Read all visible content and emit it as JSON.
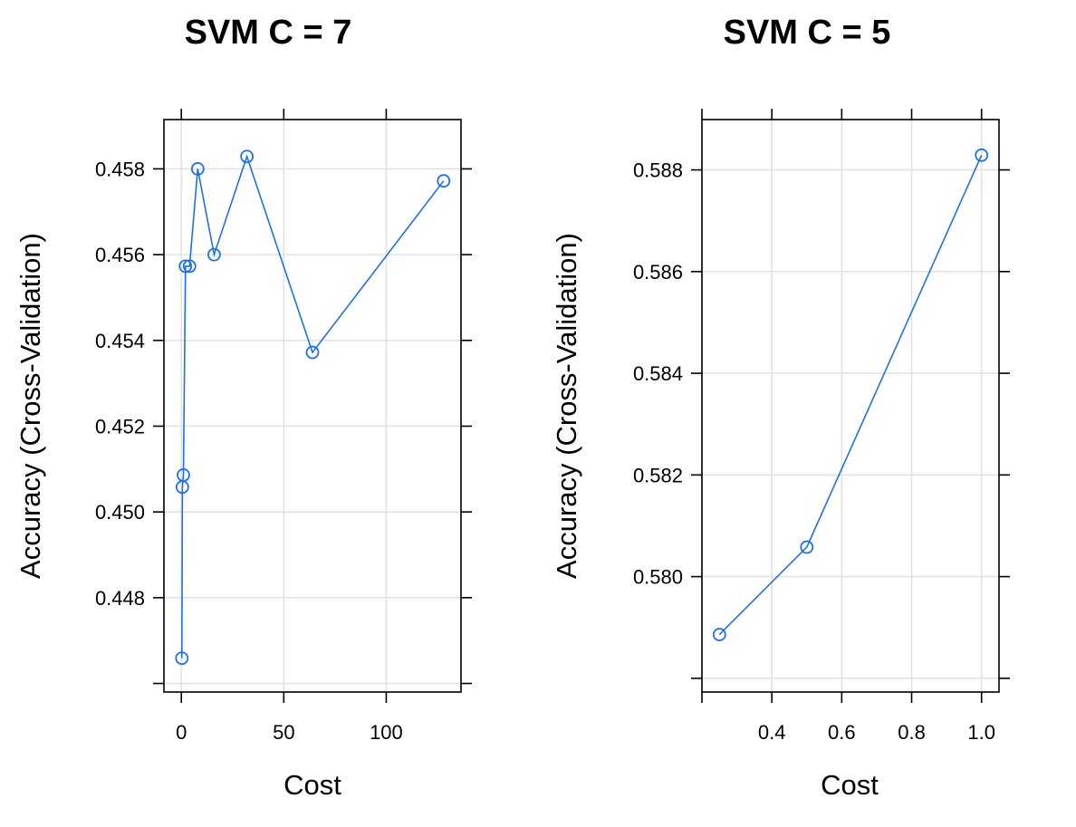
{
  "series_color": "#1F6FEB",
  "chart_data": [
    {
      "type": "line",
      "title": "SVM C = 7",
      "xlabel": "Cost",
      "ylabel": "Accuracy (Cross-Validation)",
      "grid": true,
      "x": [
        0.25,
        0.5,
        1,
        2,
        4,
        8,
        16,
        32,
        64,
        128
      ],
      "values": [
        0.44659,
        0.45058,
        0.45086,
        0.45573,
        0.45573,
        0.458,
        0.456,
        0.45829,
        0.45372,
        0.45772
      ],
      "xlim": [
        -8.5,
        136.5
      ],
      "ylim": [
        0.4458,
        0.45915
      ],
      "xticks": [
        0,
        50,
        100
      ],
      "xtick_labels": [
        "0",
        "50",
        "100"
      ],
      "yticks": [
        0.446,
        0.448,
        0.45,
        0.452,
        0.454,
        0.456,
        0.458
      ],
      "ytick_labels": [
        "",
        "0.448",
        "0.450",
        "0.452",
        "0.454",
        "0.456",
        "0.458"
      ]
    },
    {
      "type": "line",
      "title": "SVM C = 5",
      "xlabel": "Cost",
      "ylabel": "Accuracy (Cross-Validation)",
      "grid": true,
      "x": [
        0.25,
        0.5,
        1.0
      ],
      "values": [
        0.57886,
        0.58058,
        0.58829
      ],
      "xlim": [
        0.2,
        1.05
      ],
      "ylim": [
        0.57773,
        0.58899
      ],
      "xticks": [
        0.2,
        0.4,
        0.6,
        0.8,
        1.0
      ],
      "xtick_labels": [
        "",
        "0.4",
        "0.6",
        "0.8",
        "1.0"
      ],
      "yticks": [
        0.578,
        0.58,
        0.582,
        0.584,
        0.586,
        0.588
      ],
      "ytick_labels": [
        "",
        "0.580",
        "0.582",
        "0.584",
        "0.586",
        "0.588"
      ]
    }
  ]
}
